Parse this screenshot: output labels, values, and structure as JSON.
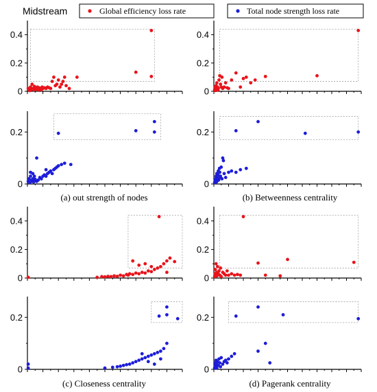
{
  "figure_title": "Midstream",
  "legend": [
    {
      "label": "Global efficiency loss rate",
      "color": "#e8141b"
    },
    {
      "label": "Total node strength loss rate",
      "color": "#1d1dd8"
    }
  ],
  "captions": [
    "(a) out strength of nodes",
    "(b) Betweenness centrality",
    "(c) Closeness centrality",
    "(d) Pagerank centrality"
  ],
  "chart_data": [
    {
      "type": "scatter",
      "panel": "a",
      "series_name": "Global efficiency loss rate",
      "color": "#e8141b",
      "xlim": [
        0,
        1
      ],
      "ylim": [
        0,
        0.5
      ],
      "yticks": [
        0,
        0.2,
        0.4
      ],
      "ytick_labels": [
        "0",
        "0.2",
        "0.4"
      ],
      "points": [
        [
          0.005,
          0.02
        ],
        [
          0.01,
          0.01
        ],
        [
          0.015,
          0.005
        ],
        [
          0.02,
          0.03
        ],
        [
          0.025,
          0.015
        ],
        [
          0.03,
          0.05
        ],
        [
          0.035,
          0.02
        ],
        [
          0.04,
          0.01
        ],
        [
          0.045,
          0.035
        ],
        [
          0.05,
          0.025
        ],
        [
          0.055,
          0.015
        ],
        [
          0.06,
          0.02
        ],
        [
          0.065,
          0.03
        ],
        [
          0.07,
          0.01
        ],
        [
          0.075,
          0.025
        ],
        [
          0.08,
          0.02
        ],
        [
          0.085,
          0.015
        ],
        [
          0.09,
          0.01
        ],
        [
          0.095,
          0.03
        ],
        [
          0.1,
          0.02
        ],
        [
          0.11,
          0.025
        ],
        [
          0.12,
          0.02
        ],
        [
          0.13,
          0.03
        ],
        [
          0.14,
          0.025
        ],
        [
          0.15,
          0.02
        ],
        [
          0.16,
          0.07
        ],
        [
          0.17,
          0.1
        ],
        [
          0.18,
          0.04
        ],
        [
          0.19,
          0.05
        ],
        [
          0.2,
          0.08
        ],
        [
          0.21,
          0.03
        ],
        [
          0.22,
          0.05
        ],
        [
          0.23,
          0.07
        ],
        [
          0.24,
          0.1
        ],
        [
          0.25,
          0.04
        ],
        [
          0.27,
          0.02
        ],
        [
          0.32,
          0.1
        ],
        [
          0.7,
          0.135
        ],
        [
          0.8,
          0.43
        ],
        [
          0.8,
          0.105
        ]
      ],
      "box": {
        "x": [
          0.02,
          0.82
        ],
        "y": [
          0.07,
          0.44
        ]
      }
    },
    {
      "type": "scatter",
      "panel": "a",
      "series_name": "Total node strength loss rate",
      "color": "#1d1dd8",
      "xlim": [
        0,
        1
      ],
      "ylim": [
        0,
        0.28
      ],
      "yticks": [
        0,
        0.2
      ],
      "ytick_labels": [
        "0",
        "0.2"
      ],
      "points": [
        [
          0.005,
          0.01
        ],
        [
          0.01,
          0.02
        ],
        [
          0.015,
          0.005
        ],
        [
          0.02,
          0.03
        ],
        [
          0.025,
          0.015
        ],
        [
          0.03,
          0.01
        ],
        [
          0.035,
          0.02
        ],
        [
          0.04,
          0.008
        ],
        [
          0.045,
          0.012
        ],
        [
          0.05,
          0.018
        ],
        [
          0.06,
          0.01
        ],
        [
          0.07,
          0.015
        ],
        [
          0.08,
          0.025
        ],
        [
          0.09,
          0.02
        ],
        [
          0.1,
          0.03
        ],
        [
          0.11,
          0.035
        ],
        [
          0.12,
          0.03
        ],
        [
          0.13,
          0.04
        ],
        [
          0.14,
          0.045
        ],
        [
          0.15,
          0.05
        ],
        [
          0.16,
          0.04
        ],
        [
          0.17,
          0.055
        ],
        [
          0.18,
          0.06
        ],
        [
          0.19,
          0.065
        ],
        [
          0.2,
          0.07
        ],
        [
          0.22,
          0.075
        ],
        [
          0.24,
          0.08
        ],
        [
          0.28,
          0.075
        ],
        [
          0.06,
          0.1
        ],
        [
          0.02,
          0.045
        ],
        [
          0.035,
          0.04
        ],
        [
          0.045,
          0.03
        ],
        [
          0.12,
          0.055
        ],
        [
          0.2,
          0.195
        ],
        [
          0.7,
          0.205
        ],
        [
          0.82,
          0.24
        ],
        [
          0.82,
          0.2
        ]
      ],
      "box": {
        "x": [
          0.17,
          0.86
        ],
        "y": [
          0.17,
          0.27
        ]
      }
    },
    {
      "type": "scatter",
      "panel": "b",
      "series_name": "Global efficiency loss rate",
      "color": "#e8141b",
      "xlim": [
        0,
        1
      ],
      "ylim": [
        0,
        0.5
      ],
      "yticks": [
        0,
        0.2,
        0.4
      ],
      "ytick_labels": [
        "0",
        "0.2",
        "0.4"
      ],
      "points": [
        [
          0.005,
          0.01
        ],
        [
          0.008,
          0.03
        ],
        [
          0.01,
          0.005
        ],
        [
          0.012,
          0.02
        ],
        [
          0.015,
          0.04
        ],
        [
          0.018,
          0.01
        ],
        [
          0.02,
          0.06
        ],
        [
          0.022,
          0.015
        ],
        [
          0.025,
          0.03
        ],
        [
          0.028,
          0.01
        ],
        [
          0.03,
          0.02
        ],
        [
          0.035,
          0.08
        ],
        [
          0.04,
          0.11
        ],
        [
          0.045,
          0.05
        ],
        [
          0.05,
          0.03
        ],
        [
          0.055,
          0.1
        ],
        [
          0.06,
          0.02
        ],
        [
          0.07,
          0.03
        ],
        [
          0.08,
          0.06
        ],
        [
          0.09,
          0.025
        ],
        [
          0.1,
          0.02
        ],
        [
          0.12,
          0.08
        ],
        [
          0.15,
          0.13
        ],
        [
          0.18,
          0.03
        ],
        [
          0.2,
          0.09
        ],
        [
          0.22,
          0.1
        ],
        [
          0.25,
          0.06
        ],
        [
          0.28,
          0.08
        ],
        [
          0.35,
          0.105
        ],
        [
          0.7,
          0.11
        ],
        [
          0.98,
          0.43
        ]
      ],
      "box": {
        "x": [
          0.04,
          0.98
        ],
        "y": [
          0.07,
          0.44
        ]
      }
    },
    {
      "type": "scatter",
      "panel": "b",
      "series_name": "Total node strength loss rate",
      "color": "#1d1dd8",
      "xlim": [
        0,
        1
      ],
      "ylim": [
        0,
        0.28
      ],
      "yticks": [
        0,
        0.2
      ],
      "ytick_labels": [
        "0",
        "0.2"
      ],
      "points": [
        [
          0.005,
          0.005
        ],
        [
          0.008,
          0.015
        ],
        [
          0.01,
          0.01
        ],
        [
          0.012,
          0.02
        ],
        [
          0.015,
          0.03
        ],
        [
          0.018,
          0.008
        ],
        [
          0.02,
          0.04
        ],
        [
          0.022,
          0.012
        ],
        [
          0.025,
          0.025
        ],
        [
          0.028,
          0.035
        ],
        [
          0.03,
          0.05
        ],
        [
          0.032,
          0.015
        ],
        [
          0.035,
          0.02
        ],
        [
          0.038,
          0.06
        ],
        [
          0.04,
          0.045
        ],
        [
          0.045,
          0.03
        ],
        [
          0.05,
          0.065
        ],
        [
          0.055,
          0.02
        ],
        [
          0.06,
          0.1
        ],
        [
          0.065,
          0.09
        ],
        [
          0.07,
          0.04
        ],
        [
          0.08,
          0.025
        ],
        [
          0.1,
          0.045
        ],
        [
          0.12,
          0.05
        ],
        [
          0.15,
          0.045
        ],
        [
          0.18,
          0.055
        ],
        [
          0.22,
          0.06
        ],
        [
          0.15,
          0.205
        ],
        [
          0.3,
          0.24
        ],
        [
          0.62,
          0.195
        ],
        [
          0.98,
          0.2
        ]
      ],
      "box": {
        "x": [
          0.04,
          0.98
        ],
        "y": [
          0.17,
          0.26
        ]
      }
    },
    {
      "type": "scatter",
      "panel": "c",
      "series_name": "Global efficiency loss rate",
      "color": "#e8141b",
      "xlim": [
        0,
        1
      ],
      "ylim": [
        0,
        0.5
      ],
      "yticks": [
        0,
        0.2,
        0.4
      ],
      "ytick_labels": [
        "0",
        "0.2",
        "0.4"
      ],
      "points": [
        [
          0.005,
          0.005
        ],
        [
          0.45,
          0.005
        ],
        [
          0.48,
          0.01
        ],
        [
          0.5,
          0.008
        ],
        [
          0.52,
          0.012
        ],
        [
          0.54,
          0.01
        ],
        [
          0.56,
          0.015
        ],
        [
          0.58,
          0.012
        ],
        [
          0.6,
          0.02
        ],
        [
          0.62,
          0.015
        ],
        [
          0.64,
          0.025
        ],
        [
          0.65,
          0.02
        ],
        [
          0.66,
          0.03
        ],
        [
          0.68,
          0.025
        ],
        [
          0.7,
          0.035
        ],
        [
          0.72,
          0.03
        ],
        [
          0.74,
          0.04
        ],
        [
          0.76,
          0.035
        ],
        [
          0.78,
          0.05
        ],
        [
          0.8,
          0.045
        ],
        [
          0.82,
          0.06
        ],
        [
          0.84,
          0.07
        ],
        [
          0.86,
          0.08
        ],
        [
          0.88,
          0.1
        ],
        [
          0.9,
          0.12
        ],
        [
          0.92,
          0.14
        ],
        [
          0.68,
          0.12
        ],
        [
          0.72,
          0.09
        ],
        [
          0.76,
          0.1
        ],
        [
          0.8,
          0.08
        ],
        [
          0.85,
          0.43
        ],
        [
          0.95,
          0.115
        ],
        [
          0.9,
          0.04
        ]
      ],
      "box": {
        "x": [
          0.65,
          1.0
        ],
        "y": [
          0.07,
          0.44
        ]
      }
    },
    {
      "type": "scatter",
      "panel": "c",
      "series_name": "Total node strength loss rate",
      "color": "#1d1dd8",
      "xlim": [
        0,
        1
      ],
      "ylim": [
        0,
        0.28
      ],
      "yticks": [
        0,
        0.2
      ],
      "ytick_labels": [
        "0",
        "0.2"
      ],
      "points": [
        [
          0.005,
          0.02
        ],
        [
          0.005,
          0.005
        ],
        [
          0.5,
          0.005
        ],
        [
          0.55,
          0.008
        ],
        [
          0.58,
          0.01
        ],
        [
          0.6,
          0.012
        ],
        [
          0.62,
          0.015
        ],
        [
          0.64,
          0.018
        ],
        [
          0.66,
          0.02
        ],
        [
          0.68,
          0.025
        ],
        [
          0.7,
          0.03
        ],
        [
          0.72,
          0.035
        ],
        [
          0.74,
          0.04
        ],
        [
          0.76,
          0.045
        ],
        [
          0.78,
          0.05
        ],
        [
          0.8,
          0.055
        ],
        [
          0.82,
          0.06
        ],
        [
          0.84,
          0.065
        ],
        [
          0.86,
          0.07
        ],
        [
          0.88,
          0.08
        ],
        [
          0.9,
          0.1
        ],
        [
          0.74,
          0.06
        ],
        [
          0.78,
          0.03
        ],
        [
          0.82,
          0.02
        ],
        [
          0.86,
          0.04
        ],
        [
          0.85,
          0.205
        ],
        [
          0.9,
          0.24
        ],
        [
          0.9,
          0.21
        ],
        [
          0.97,
          0.195
        ]
      ],
      "box": {
        "x": [
          0.8,
          1.0
        ],
        "y": [
          0.18,
          0.26
        ]
      }
    },
    {
      "type": "scatter",
      "panel": "d",
      "series_name": "Global efficiency loss rate",
      "color": "#e8141b",
      "xlim": [
        0,
        1
      ],
      "ylim": [
        0,
        0.5
      ],
      "yticks": [
        0,
        0.2,
        0.4
      ],
      "ytick_labels": [
        "0",
        "0.2",
        "0.4"
      ],
      "points": [
        [
          0.005,
          0.01
        ],
        [
          0.008,
          0.03
        ],
        [
          0.01,
          0.06
        ],
        [
          0.012,
          0.02
        ],
        [
          0.015,
          0.1
        ],
        [
          0.018,
          0.04
        ],
        [
          0.02,
          0.015
        ],
        [
          0.025,
          0.08
        ],
        [
          0.03,
          0.03
        ],
        [
          0.035,
          0.05
        ],
        [
          0.04,
          0.02
        ],
        [
          0.045,
          0.07
        ],
        [
          0.05,
          0.01
        ],
        [
          0.06,
          0.04
        ],
        [
          0.07,
          0.03
        ],
        [
          0.08,
          0.02
        ],
        [
          0.09,
          0.05
        ],
        [
          0.1,
          0.02
        ],
        [
          0.12,
          0.03
        ],
        [
          0.14,
          0.02
        ],
        [
          0.16,
          0.025
        ],
        [
          0.18,
          0.02
        ],
        [
          0.2,
          0.43
        ],
        [
          0.3,
          0.105
        ],
        [
          0.35,
          0.02
        ],
        [
          0.45,
          0.015
        ],
        [
          0.5,
          0.13
        ],
        [
          0.95,
          0.11
        ]
      ],
      "box": {
        "x": [
          0.04,
          0.98
        ],
        "y": [
          0.07,
          0.44
        ]
      }
    },
    {
      "type": "scatter",
      "panel": "d",
      "series_name": "Total node strength loss rate",
      "color": "#1d1dd8",
      "xlim": [
        0,
        1
      ],
      "ylim": [
        0,
        0.28
      ],
      "yticks": [
        0,
        0.2
      ],
      "ytick_labels": [
        "0",
        "0.2"
      ],
      "points": [
        [
          0.005,
          0.005
        ],
        [
          0.008,
          0.015
        ],
        [
          0.01,
          0.025
        ],
        [
          0.012,
          0.01
        ],
        [
          0.015,
          0.035
        ],
        [
          0.018,
          0.02
        ],
        [
          0.02,
          0.005
        ],
        [
          0.025,
          0.03
        ],
        [
          0.03,
          0.015
        ],
        [
          0.035,
          0.04
        ],
        [
          0.04,
          0.025
        ],
        [
          0.045,
          0.01
        ],
        [
          0.05,
          0.045
        ],
        [
          0.06,
          0.02
        ],
        [
          0.07,
          0.03
        ],
        [
          0.08,
          0.035
        ],
        [
          0.09,
          0.025
        ],
        [
          0.1,
          0.04
        ],
        [
          0.12,
          0.05
        ],
        [
          0.14,
          0.06
        ],
        [
          0.3,
          0.07
        ],
        [
          0.35,
          0.1
        ],
        [
          0.38,
          0.025
        ],
        [
          0.15,
          0.205
        ],
        [
          0.3,
          0.24
        ],
        [
          0.47,
          0.21
        ],
        [
          0.98,
          0.195
        ]
      ],
      "box": {
        "x": [
          0.1,
          0.98
        ],
        "y": [
          0.18,
          0.26
        ]
      }
    }
  ]
}
